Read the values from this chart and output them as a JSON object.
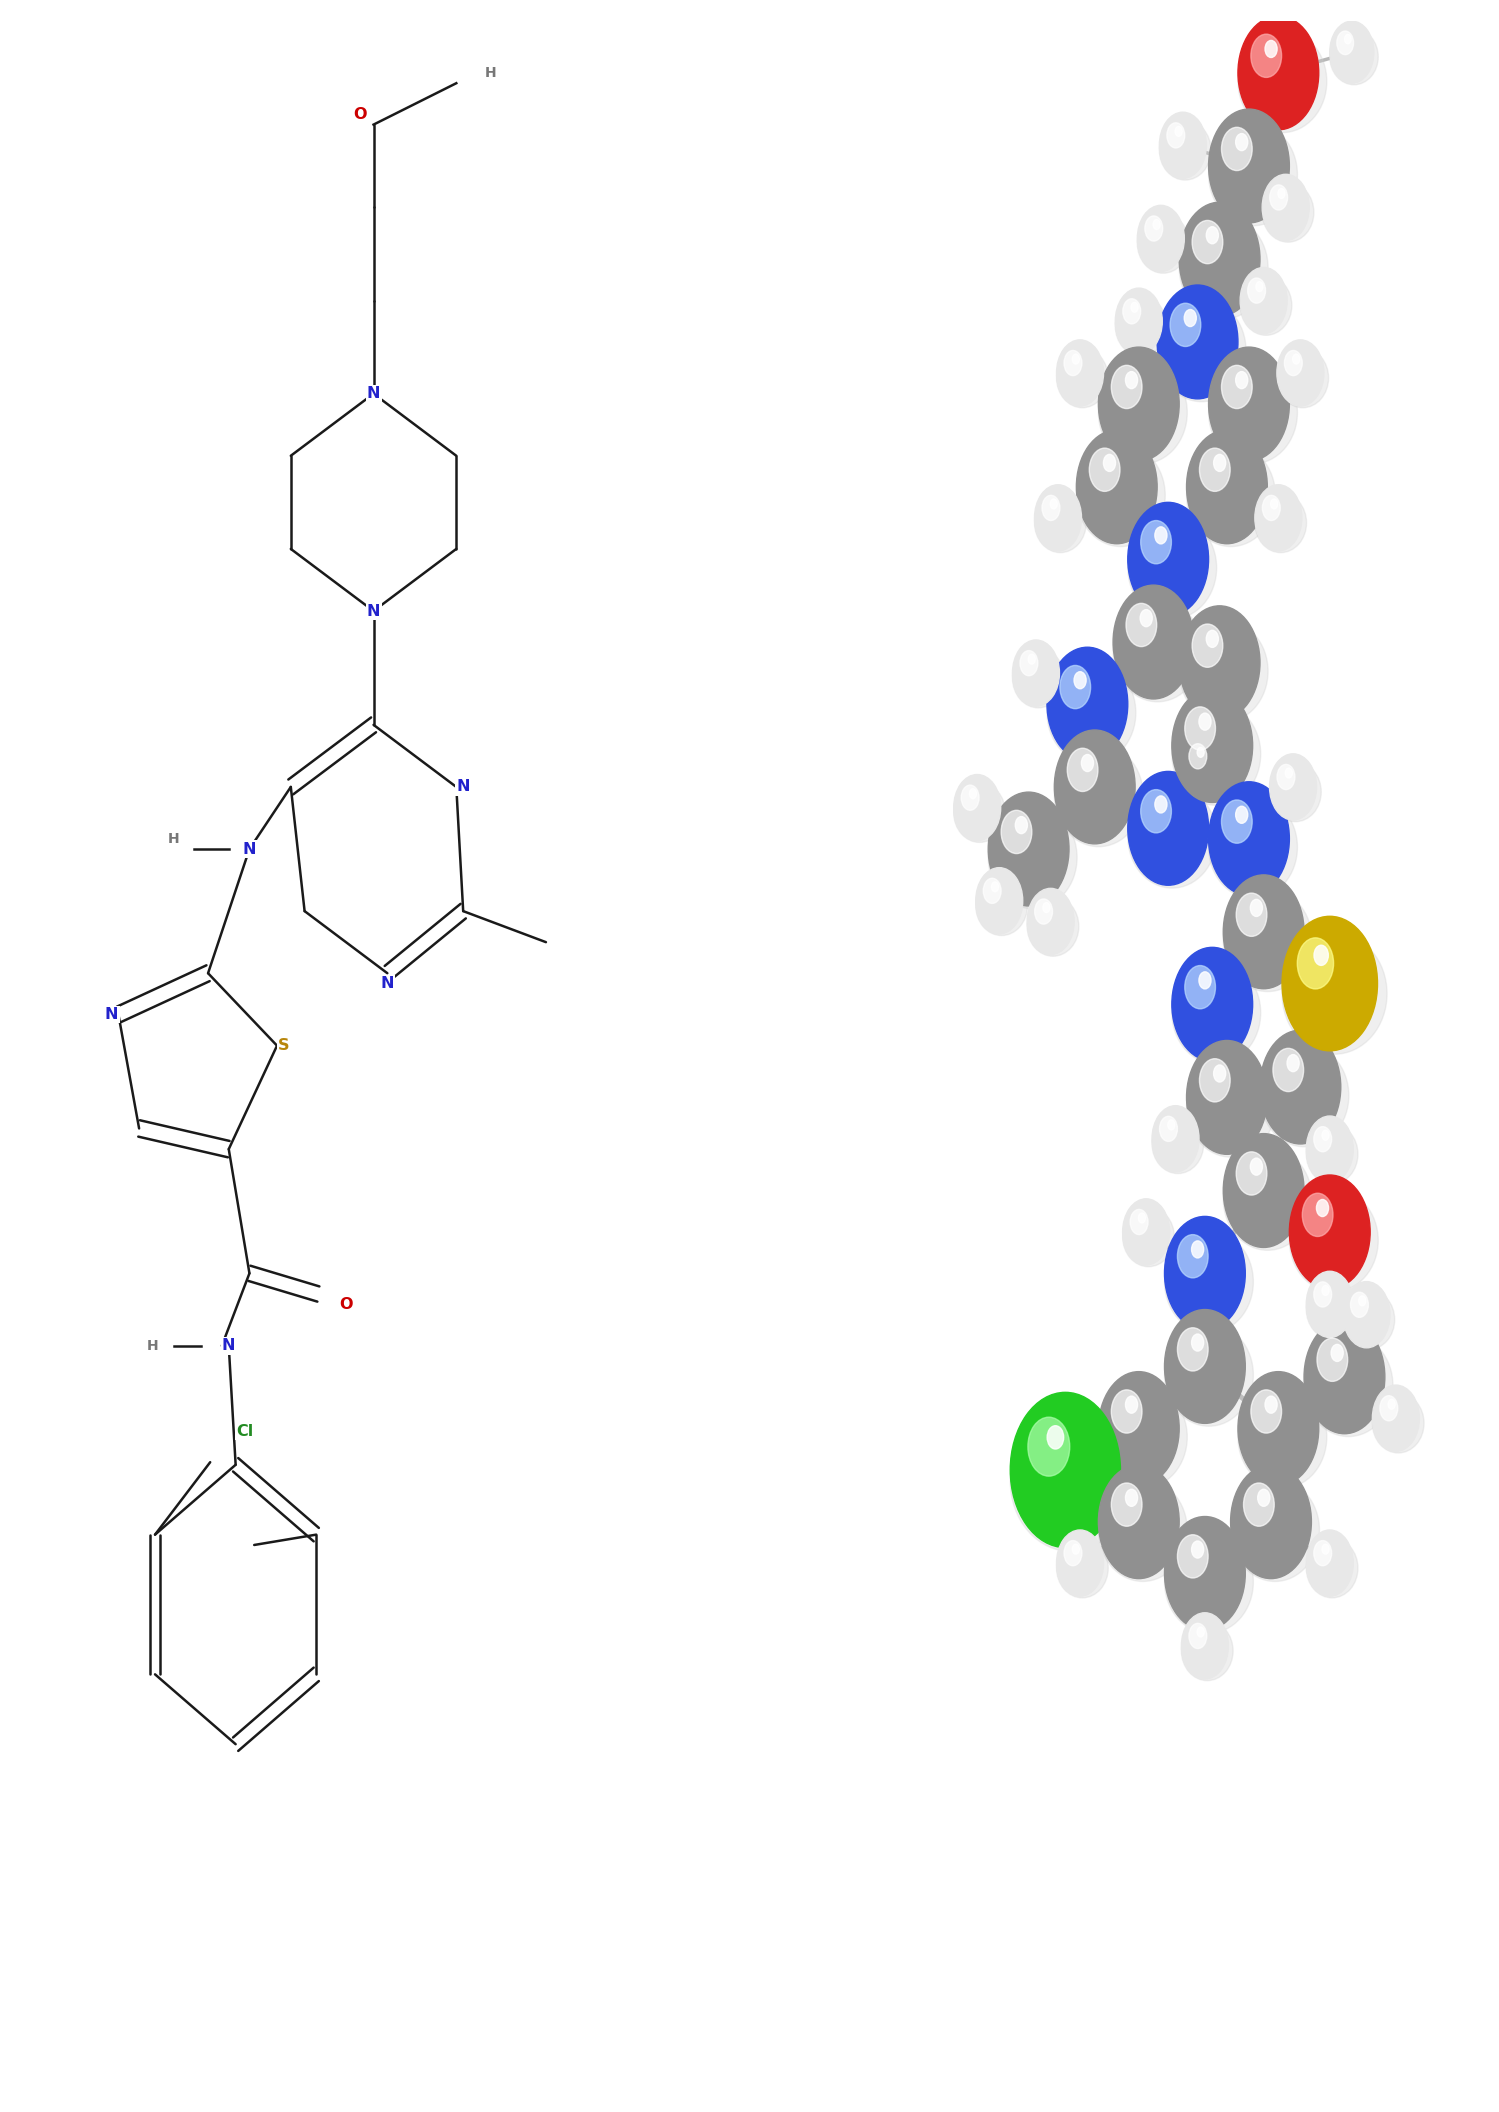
{
  "background_color": "#ffffff",
  "atom_colors_2d": {
    "N": "#2222cc",
    "O": "#cc0000",
    "S": "#b8860b",
    "Cl": "#228B22",
    "C": "#1a1a1a",
    "H": "#777777"
  },
  "bond_color": "#1a1a1a",
  "figsize": [
    14.99,
    21.12
  ],
  "dpi": 100,
  "ball_colors_3d": {
    "C": "#909090",
    "N": "#3050e0",
    "O": "#dd2222",
    "S": "#ccaa00",
    "Cl": "#22cc22",
    "H": "#e8e8e8"
  }
}
